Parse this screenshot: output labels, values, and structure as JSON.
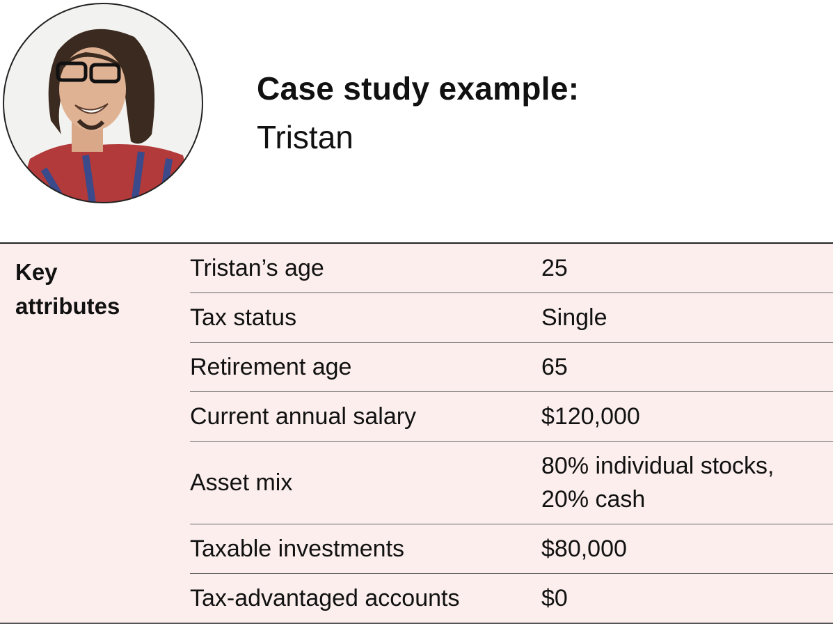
{
  "header": {
    "title": "Case study example:",
    "name": "Tristan"
  },
  "table": {
    "label": "Key attributes",
    "rows": [
      [
        "Tristan’s age",
        "25"
      ],
      [
        "Tax status",
        "Single"
      ],
      [
        "Retirement age",
        "65"
      ],
      [
        "Current annual salary",
        "$120,000"
      ],
      [
        "Asset mix",
        "80% individual stocks, 20% cash"
      ],
      [
        "Taxable investments",
        "$80,000"
      ],
      [
        "Tax-advantaged accounts",
        "$0"
      ]
    ]
  }
}
